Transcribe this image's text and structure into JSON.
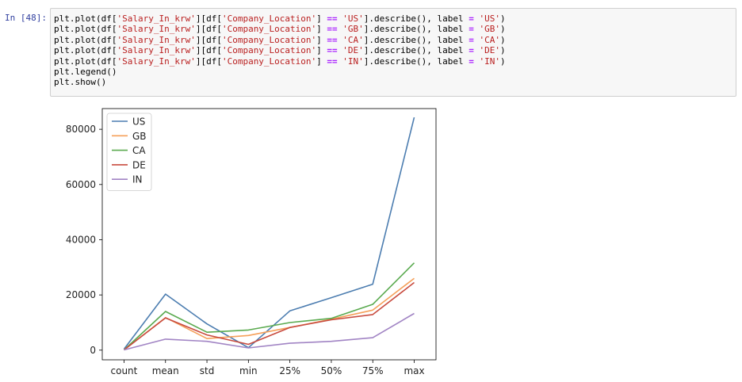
{
  "cell": {
    "prompt": "In [48]:",
    "code_lines": [
      [
        [
          "plt.plot(df[",
          ""
        ],
        [
          "'Salary_In_krw'",
          "str"
        ],
        [
          "][df[",
          ""
        ],
        [
          "'Company_Location'",
          "str"
        ],
        [
          "] ",
          ""
        ],
        [
          "==",
          "op"
        ],
        [
          " ",
          ""
        ],
        [
          "'US'",
          "str"
        ],
        [
          "].describe(), label ",
          ""
        ],
        [
          "=",
          "op"
        ],
        [
          " ",
          ""
        ],
        [
          "'US'",
          "str"
        ],
        [
          ")",
          ""
        ]
      ],
      [
        [
          "plt.plot(df[",
          ""
        ],
        [
          "'Salary_In_krw'",
          "str"
        ],
        [
          "][df[",
          ""
        ],
        [
          "'Company_Location'",
          "str"
        ],
        [
          "] ",
          ""
        ],
        [
          "==",
          "op"
        ],
        [
          " ",
          ""
        ],
        [
          "'GB'",
          "str"
        ],
        [
          "].describe(), label ",
          ""
        ],
        [
          "=",
          "op"
        ],
        [
          " ",
          ""
        ],
        [
          "'GB'",
          "str"
        ],
        [
          ")",
          ""
        ]
      ],
      [
        [
          "plt.plot(df[",
          ""
        ],
        [
          "'Salary_In_krw'",
          "str"
        ],
        [
          "][df[",
          ""
        ],
        [
          "'Company_Location'",
          "str"
        ],
        [
          "] ",
          ""
        ],
        [
          "==",
          "op"
        ],
        [
          " ",
          ""
        ],
        [
          "'CA'",
          "str"
        ],
        [
          "].describe(), label ",
          ""
        ],
        [
          "=",
          "op"
        ],
        [
          " ",
          ""
        ],
        [
          "'CA'",
          "str"
        ],
        [
          ")",
          ""
        ]
      ],
      [
        [
          "plt.plot(df[",
          ""
        ],
        [
          "'Salary_In_krw'",
          "str"
        ],
        [
          "][df[",
          ""
        ],
        [
          "'Company_Location'",
          "str"
        ],
        [
          "] ",
          ""
        ],
        [
          "==",
          "op"
        ],
        [
          " ",
          ""
        ],
        [
          "'DE'",
          "str"
        ],
        [
          "].describe(), label ",
          ""
        ],
        [
          "=",
          "op"
        ],
        [
          " ",
          ""
        ],
        [
          "'DE'",
          "str"
        ],
        [
          ")",
          ""
        ]
      ],
      [
        [
          "plt.plot(df[",
          ""
        ],
        [
          "'Salary_In_krw'",
          "str"
        ],
        [
          "][df[",
          ""
        ],
        [
          "'Company_Location'",
          "str"
        ],
        [
          "] ",
          ""
        ],
        [
          "==",
          "op"
        ],
        [
          " ",
          ""
        ],
        [
          "'IN'",
          "str"
        ],
        [
          "].describe(), label ",
          ""
        ],
        [
          "=",
          "op"
        ],
        [
          " ",
          ""
        ],
        [
          "'IN'",
          "str"
        ],
        [
          ")",
          ""
        ]
      ],
      [
        [
          "plt.legend()",
          ""
        ]
      ],
      [
        [
          "plt.show()",
          ""
        ]
      ]
    ]
  },
  "chart_data": {
    "type": "line",
    "categories": [
      "count",
      "mean",
      "std",
      "min",
      "25%",
      "50%",
      "75%",
      "max"
    ],
    "ylim": [
      -3500,
      87500
    ],
    "yticks": [
      0,
      20000,
      40000,
      60000,
      80000
    ],
    "ytick_labels": [
      "0",
      "20000",
      "40000",
      "60000",
      "80000"
    ],
    "legend_position": "upper left",
    "grid": false,
    "series": [
      {
        "name": "US",
        "color": "#4c7db0",
        "values": [
          400,
          20300,
          9500,
          900,
          14200,
          19000,
          23900,
          84300
        ]
      },
      {
        "name": "GB",
        "color": "#f5a05a",
        "values": [
          100,
          11800,
          4200,
          5300,
          8200,
          11200,
          14500,
          26000
        ]
      },
      {
        "name": "CA",
        "color": "#5aaa4f",
        "values": [
          100,
          14000,
          6500,
          7300,
          10000,
          11500,
          16600,
          31600
        ]
      },
      {
        "name": "DE",
        "color": "#c84b3f",
        "values": [
          100,
          11700,
          5500,
          2100,
          8200,
          11000,
          12900,
          24500
        ]
      },
      {
        "name": "IN",
        "color": "#a184c4",
        "values": [
          100,
          4000,
          3200,
          800,
          2500,
          3200,
          4500,
          13300
        ]
      }
    ]
  }
}
